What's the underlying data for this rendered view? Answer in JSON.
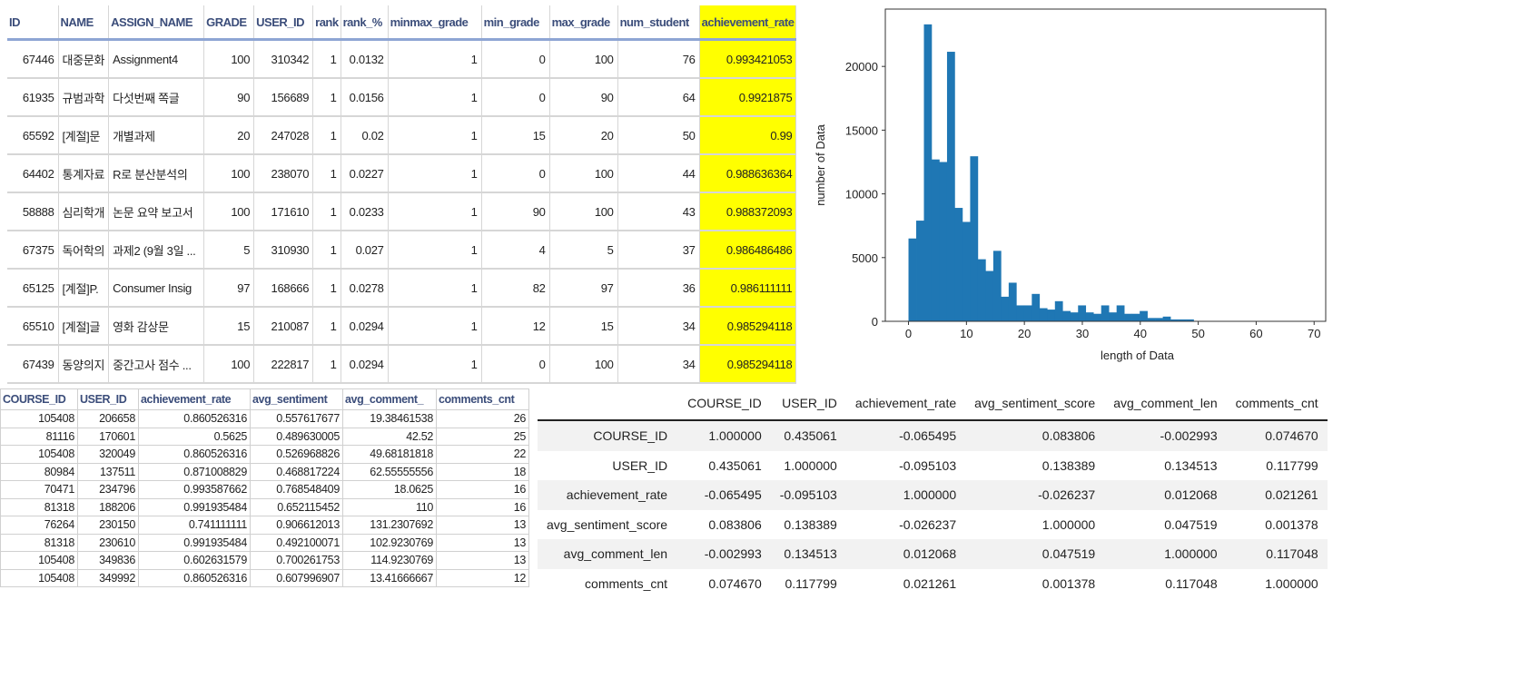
{
  "rank_table": {
    "columns": [
      "ID",
      "NAME",
      "ASSIGN_NAME",
      "GRADE",
      "USER_ID",
      "rank",
      "rank_%",
      "minmax_grade",
      "min_grade",
      "max_grade",
      "num_student",
      "achievement_rate"
    ],
    "highlight_color": "#ffff00",
    "rows": [
      [
        "67446",
        "대중문화",
        "Assignment4",
        "100",
        "310342",
        "1",
        "0.0132",
        "1",
        "0",
        "100",
        "76",
        "0.993421053"
      ],
      [
        "61935",
        "규범과학",
        "다섯번째 쪽글",
        "90",
        "156689",
        "1",
        "0.0156",
        "1",
        "0",
        "90",
        "64",
        "0.9921875"
      ],
      [
        "65592",
        "[계절]문",
        "개별과제",
        "20",
        "247028",
        "1",
        "0.02",
        "1",
        "15",
        "20",
        "50",
        "0.99"
      ],
      [
        "64402",
        "통계자료",
        "R로 분산분석의",
        "100",
        "238070",
        "1",
        "0.0227",
        "1",
        "0",
        "100",
        "44",
        "0.988636364"
      ],
      [
        "58888",
        "심리학개",
        "논문 요약 보고서",
        "100",
        "171610",
        "1",
        "0.0233",
        "1",
        "90",
        "100",
        "43",
        "0.988372093"
      ],
      [
        "67375",
        "독어학의",
        "과제2 (9월 3일 ...",
        "5",
        "310930",
        "1",
        "0.027",
        "1",
        "4",
        "5",
        "37",
        "0.986486486"
      ],
      [
        "65125",
        "[계절]P.",
        "Consumer Insig",
        "97",
        "168666",
        "1",
        "0.0278",
        "1",
        "82",
        "97",
        "36",
        "0.986111111"
      ],
      [
        "65510",
        "[계절]글",
        "영화 감상문",
        "15",
        "210087",
        "1",
        "0.0294",
        "1",
        "12",
        "15",
        "34",
        "0.985294118"
      ],
      [
        "67439",
        "동양의지",
        "중간고사 점수 ...",
        "100",
        "222817",
        "1",
        "0.0294",
        "1",
        "0",
        "100",
        "34",
        "0.985294118"
      ]
    ]
  },
  "chart_data": {
    "type": "bar",
    "subtype": "histogram",
    "xlabel": "length of Data",
    "ylabel": "number of Data",
    "xlim": [
      -4,
      72
    ],
    "ylim": [
      0,
      24500
    ],
    "xticks": [
      "0",
      "10",
      "20",
      "30",
      "40",
      "50",
      "60",
      "70"
    ],
    "yticks": [
      "0",
      "5000",
      "10000",
      "15000",
      "20000"
    ],
    "bin_start": 0,
    "bin_width": 1.33,
    "values": [
      6500,
      7900,
      23300,
      12700,
      12500,
      21150,
      8900,
      7800,
      12950,
      4870,
      3950,
      5530,
      1930,
      3030,
      1250,
      1250,
      2150,
      1030,
      920,
      1580,
      810,
      700,
      1250,
      700,
      590,
      1250,
      700,
      1250,
      590,
      590,
      810,
      260,
      260,
      370,
      150,
      150,
      150
    ],
    "color": "#1f77b4",
    "grid": false
  },
  "comments_table": {
    "columns": [
      "COURSE_ID",
      "USER_ID",
      "achievement_rate",
      "avg_sentiment",
      "avg_comment_",
      "comments_cnt"
    ],
    "rows": [
      [
        "105408",
        "206658",
        "0.860526316",
        "0.557617677",
        "19.38461538",
        "26"
      ],
      [
        "81116",
        "170601",
        "0.5625",
        "0.489630005",
        "42.52",
        "25"
      ],
      [
        "105408",
        "320049",
        "0.860526316",
        "0.526968826",
        "49.68181818",
        "22"
      ],
      [
        "80984",
        "137511",
        "0.871008829",
        "0.468817224",
        "62.55555556",
        "18"
      ],
      [
        "70471",
        "234796",
        "0.993587662",
        "0.768548409",
        "18.0625",
        "16"
      ],
      [
        "81318",
        "188206",
        "0.991935484",
        "0.652115452",
        "110",
        "16"
      ],
      [
        "76264",
        "230150",
        "0.741111111",
        "0.906612013",
        "131.2307692",
        "13"
      ],
      [
        "81318",
        "230610",
        "0.991935484",
        "0.492100071",
        "102.9230769",
        "13"
      ],
      [
        "105408",
        "349836",
        "0.602631579",
        "0.700261753",
        "114.9230769",
        "13"
      ],
      [
        "105408",
        "349992",
        "0.860526316",
        "0.607996907",
        "13.41666667",
        "12"
      ]
    ]
  },
  "corr_table": {
    "columns": [
      "",
      "COURSE_ID",
      "USER_ID",
      "achievement_rate",
      "avg_sentiment_score",
      "avg_comment_len",
      "comments_cnt"
    ],
    "rows": [
      [
        "COURSE_ID",
        "1.000000",
        "0.435061",
        "-0.065495",
        "0.083806",
        "-0.002993",
        "0.074670"
      ],
      [
        "USER_ID",
        "0.435061",
        "1.000000",
        "-0.095103",
        "0.138389",
        "0.134513",
        "0.117799"
      ],
      [
        "achievement_rate",
        "-0.065495",
        "-0.095103",
        "1.000000",
        "-0.026237",
        "0.012068",
        "0.021261"
      ],
      [
        "avg_sentiment_score",
        "0.083806",
        "0.138389",
        "-0.026237",
        "1.000000",
        "0.047519",
        "0.001378"
      ],
      [
        "avg_comment_len",
        "-0.002993",
        "0.134513",
        "0.012068",
        "0.047519",
        "1.000000",
        "0.117048"
      ],
      [
        "comments_cnt",
        "0.074670",
        "0.117799",
        "0.021261",
        "0.001378",
        "0.117048",
        "1.000000"
      ]
    ]
  }
}
